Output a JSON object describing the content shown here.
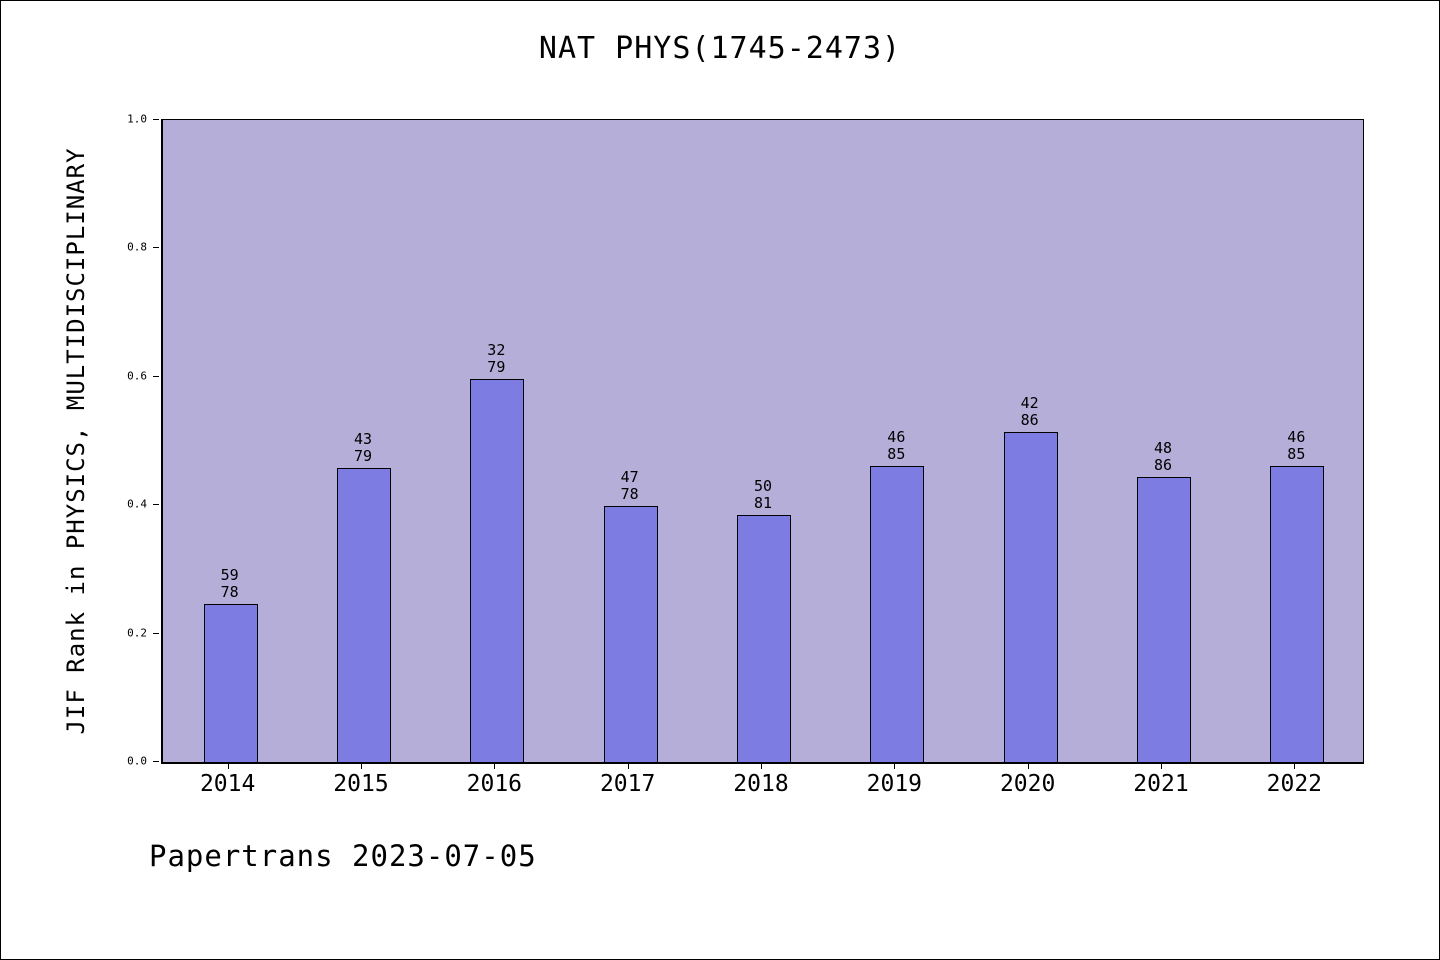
{
  "chart_data": {
    "type": "bar",
    "title": "NAT PHYS(1745-2473)",
    "ylabel": "JIF Rank in PHYSICS, MULTIDISCIPLINARY",
    "xlabel": "",
    "categories": [
      "2014",
      "2015",
      "2016",
      "2017",
      "2018",
      "2019",
      "2020",
      "2021",
      "2022"
    ],
    "rank": [
      59,
      43,
      32,
      47,
      50,
      46,
      42,
      48,
      46
    ],
    "total": [
      78,
      79,
      79,
      78,
      81,
      85,
      86,
      86,
      85
    ],
    "values": [
      0.244,
      0.456,
      0.595,
      0.397,
      0.383,
      0.459,
      0.512,
      0.442,
      0.459
    ],
    "ylim": [
      0.0,
      1.0
    ],
    "y_ticks": [
      0.0,
      0.2,
      0.4,
      0.6,
      0.8,
      1.0
    ],
    "y_tick_labels": [
      "0.0",
      "0.2",
      "0.4",
      "0.6",
      "0.8",
      "1.0"
    ],
    "grid": false,
    "legend": "none",
    "plot_bg": "#b4aed8",
    "bar_color": "#7d7ce2",
    "bar_edge_color": "#000000"
  },
  "footer": {
    "text": "Papertrans 2023-07-05"
  }
}
